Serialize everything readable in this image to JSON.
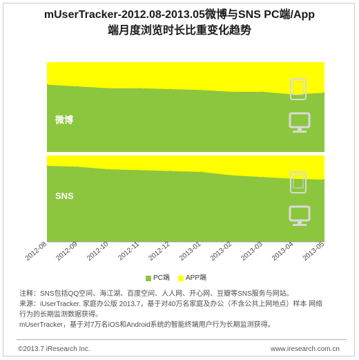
{
  "title_line1": "mUserTracker-2012.08-2013.05微博与SNS PC端/App",
  "title_line2": "端月度浏览时长比重变化趋势",
  "colors": {
    "pc": "#8cc63f",
    "app": "#ffff00",
    "device_icon": "#d9d9d9"
  },
  "legend": {
    "pc_label": "PC端",
    "app_label": "APP端"
  },
  "notes": [
    "注释：SNS包括QQ空间、海江湖、百度空间、人人网、开心网、豆瓣等SNS服务与网站。",
    "来源：iUserTracker. 家庭办公版 2013.7，基于对40万名家庭及办公（不含公共上网地点）样本 网络",
    "行为的长期监测数据获得。",
    " mUserTracker，基于对7万名iOS和Android系统的智能终端用户行为长期监测获得。"
  ],
  "footer": {
    "copyright": "©2013.7 iResearch Inc.",
    "website": "www.iresearch.com.cn"
  },
  "chart_data": {
    "type": "area",
    "x": [
      "2012-08",
      "2012-09",
      "2012-10",
      "2012-11",
      "2012-12",
      "2013-01",
      "2013-02",
      "2013-03",
      "2013-04",
      "2013-05"
    ],
    "ylim": [
      0,
      100
    ],
    "panels": [
      {
        "label": "微博",
        "series": [
          {
            "name": "PC端",
            "values": [
              75,
              73,
              71,
              71,
              70,
              69,
              67,
              67,
              64,
              66
            ]
          },
          {
            "name": "APP端",
            "values": [
              25,
              27,
              29,
              29,
              30,
              31,
              33,
              33,
              36,
              34
            ]
          }
        ]
      },
      {
        "label": "SNS",
        "series": [
          {
            "name": "PC端",
            "values": [
              88,
              87,
              84,
              83,
              82,
              81,
              77,
              75,
              73,
              72
            ]
          },
          {
            "name": "APP端",
            "values": [
              12,
              13,
              16,
              17,
              18,
              19,
              23,
              25,
              27,
              28
            ]
          }
        ]
      }
    ]
  }
}
